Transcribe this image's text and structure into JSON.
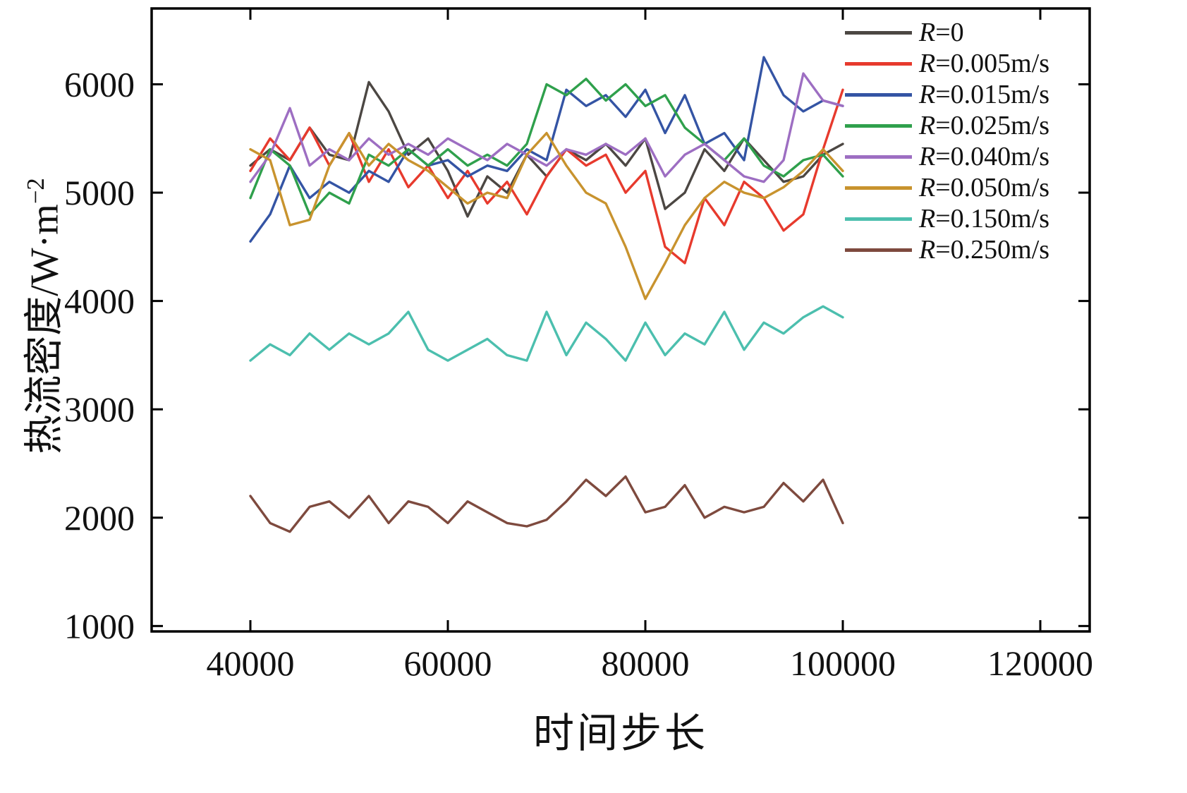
{
  "chart_data": {
    "type": "line",
    "title": "",
    "xlabel": "时间步长",
    "ylabel": "热流密度/W·m",
    "ylabel_sup": "−2",
    "xlim": [
      30000,
      125000
    ],
    "ylim": [
      950,
      6700
    ],
    "x_ticks": [
      40000,
      60000,
      80000,
      100000,
      120000
    ],
    "y_ticks": [
      1000,
      2000,
      3000,
      4000,
      5000,
      6000
    ],
    "x_start": 40000,
    "x_step": 2000,
    "grid": false,
    "legend_position": "top-right",
    "frame_color": "#000000",
    "series": [
      {
        "name": "R=0",
        "color": "#4c4743",
        "values": [
          5250,
          5400,
          5300,
          5600,
          5350,
          5300,
          6020,
          5750,
          5350,
          5500,
          5200,
          4780,
          5150,
          5000,
          5350,
          5150,
          5400,
          5300,
          5450,
          5250,
          5500,
          4850,
          5000,
          5400,
          5200,
          5500,
          5300,
          5100,
          5150,
          5350,
          5450
        ]
      },
      {
        "name": "R=0.005m/s",
        "color": "#e73a2d",
        "values": [
          5200,
          5500,
          5300,
          5600,
          5250,
          5550,
          5100,
          5400,
          5050,
          5250,
          4950,
          5200,
          4900,
          5100,
          4800,
          5150,
          5400,
          5250,
          5350,
          5000,
          5200,
          4500,
          4350,
          4950,
          4700,
          5100,
          4950,
          4650,
          4800,
          5400,
          5950
        ]
      },
      {
        "name": "R=0.015m/s",
        "color": "#3454a4",
        "values": [
          4550,
          4800,
          5250,
          4950,
          5100,
          5000,
          5200,
          5100,
          5400,
          5250,
          5300,
          5150,
          5250,
          5200,
          5400,
          5300,
          5950,
          5800,
          5900,
          5700,
          5950,
          5550,
          5900,
          5450,
          5550,
          5300,
          6250,
          5900,
          5750,
          5850,
          5800
        ]
      },
      {
        "name": "R=0.025m/s",
        "color": "#2fa04c",
        "values": [
          4950,
          5400,
          5250,
          4800,
          5000,
          4900,
          5350,
          5250,
          5400,
          5250,
          5400,
          5250,
          5350,
          5250,
          5450,
          6000,
          5900,
          6050,
          5850,
          6000,
          5800,
          5900,
          5600,
          5450,
          5300,
          5500,
          5250,
          5150,
          5300,
          5350,
          5150
        ]
      },
      {
        "name": "R=0.040m/s",
        "color": "#9d6ec2",
        "values": [
          5100,
          5350,
          5780,
          5250,
          5400,
          5300,
          5500,
          5350,
          5450,
          5350,
          5500,
          5400,
          5300,
          5450,
          5350,
          5250,
          5400,
          5350,
          5450,
          5350,
          5500,
          5150,
          5350,
          5450,
          5300,
          5150,
          5100,
          5300,
          6100,
          5850,
          5800
        ]
      },
      {
        "name": "R=0.050m/s",
        "color": "#c8932e",
        "values": [
          5400,
          5300,
          4700,
          4750,
          5250,
          5550,
          5250,
          5450,
          5300,
          5200,
          5050,
          4900,
          5000,
          4950,
          5350,
          5550,
          5250,
          5000,
          4900,
          4500,
          4020,
          4350,
          4700,
          4950,
          5100,
          5000,
          4950,
          5050,
          5200,
          5400,
          5200
        ]
      },
      {
        "name": "R=0.150m/s",
        "color": "#4cbfae",
        "values": [
          3450,
          3600,
          3500,
          3700,
          3550,
          3700,
          3600,
          3700,
          3900,
          3550,
          3450,
          3550,
          3650,
          3500,
          3450,
          3900,
          3500,
          3800,
          3650,
          3450,
          3800,
          3500,
          3700,
          3600,
          3900,
          3550,
          3800,
          3700,
          3850,
          3950,
          3850
        ]
      },
      {
        "name": "R=0.250m/s",
        "color": "#7e4a3e",
        "values": [
          2200,
          1950,
          1870,
          2100,
          2150,
          2000,
          2200,
          1950,
          2150,
          2100,
          1950,
          2150,
          2050,
          1950,
          1920,
          1980,
          2150,
          2350,
          2200,
          2380,
          2050,
          2100,
          2300,
          2000,
          2100,
          2050,
          2100,
          2320,
          2150,
          2350,
          1950
        ]
      }
    ]
  }
}
